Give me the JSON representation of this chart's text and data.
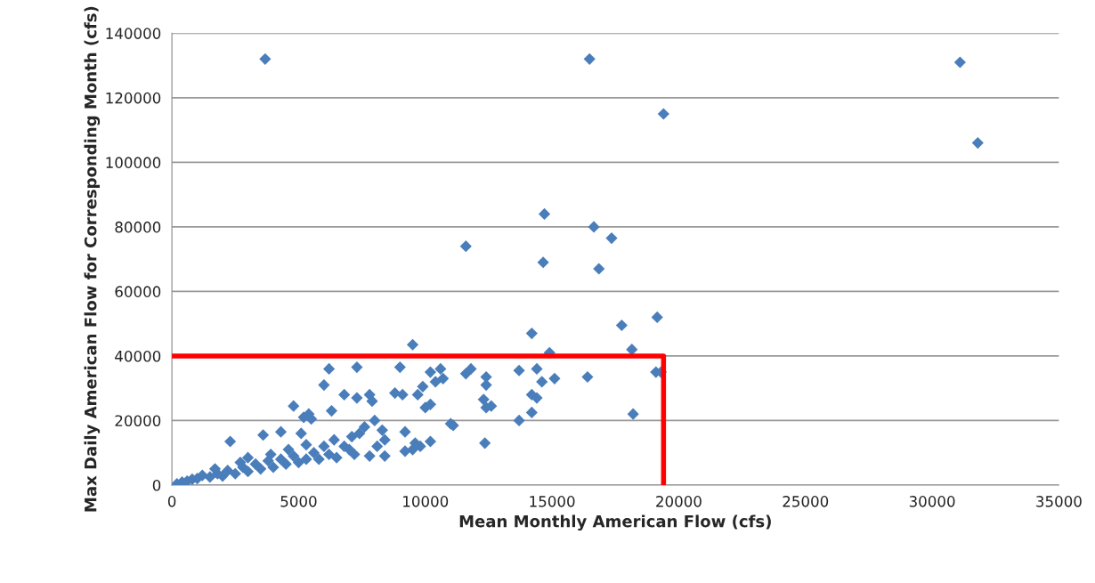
{
  "chart_data": {
    "type": "scatter",
    "xlabel": "Mean Monthly American Flow (cfs)",
    "ylabel": "Max Daily American Flow for Corresponding Month (cfs)",
    "xlim": [
      0,
      35000
    ],
    "xticks": [
      0,
      5000,
      10000,
      15000,
      20000,
      25000,
      30000,
      35000
    ],
    "ylim": [
      0,
      140000
    ],
    "yticks": [
      0,
      20000,
      40000,
      60000,
      80000,
      100000,
      120000,
      140000
    ],
    "grid": "y",
    "legend": false,
    "series": [
      {
        "marker": "diamond",
        "color": "#4a7ebb",
        "x": [
          3680,
          16480,
          19400,
          31100,
          31800,
          14700,
          16650,
          17350,
          11600,
          14650,
          16850,
          17750,
          19150,
          14200,
          18150,
          9500,
          14900,
          19100,
          19300,
          18200,
          16400,
          15100,
          14600,
          13700,
          14400,
          14200,
          14400,
          14200,
          13700,
          12350,
          12400,
          12400,
          12300,
          12600,
          12400,
          11600,
          11800,
          10600,
          10400,
          10700,
          10200,
          10000,
          10200,
          9900,
          11000,
          11100,
          10200,
          9000,
          9100,
          8800,
          9700,
          9200,
          9200,
          9800,
          9500,
          9600,
          7300,
          6200,
          6000,
          7800,
          7900,
          7300,
          6800,
          6300,
          5200,
          5400,
          4800,
          5500,
          5100,
          4300,
          3600,
          2300,
          7600,
          7400,
          7100,
          8000,
          8300,
          8400,
          8100,
          8400,
          7800,
          6800,
          6400,
          6000,
          200,
          400,
          600,
          800,
          1000,
          1200,
          1500,
          1800,
          2000,
          2200,
          2500,
          2800,
          3000,
          3300,
          3500,
          3800,
          4000,
          4300,
          4500,
          4800,
          5000,
          5300,
          5600,
          5800,
          6200,
          6500,
          7000,
          7200,
          2700,
          3900,
          4600,
          5300,
          1700,
          3000
        ],
        "values": [
          132000,
          132000,
          115000,
          131000,
          106000,
          84000,
          80000,
          76500,
          74000,
          69000,
          67000,
          49500,
          52000,
          47000,
          42000,
          43500,
          41000,
          35000,
          35000,
          22000,
          33500,
          33000,
          32000,
          35500,
          36000,
          28000,
          27000,
          22500,
          20000,
          13000,
          31000,
          33500,
          26500,
          24500,
          24000,
          34500,
          36000,
          36000,
          32000,
          33000,
          35000,
          24000,
          25000,
          30500,
          19000,
          18500,
          13500,
          36500,
          28000,
          28500,
          28000,
          16500,
          10500,
          12000,
          11000,
          13000,
          36500,
          36000,
          31000,
          28000,
          26000,
          27000,
          28000,
          23000,
          21000,
          22000,
          24500,
          20500,
          16000,
          16500,
          15500,
          13500,
          18000,
          16000,
          15000,
          20000,
          17000,
          14000,
          12000,
          9000,
          9000,
          12000,
          14000,
          12000,
          400,
          900,
          1200,
          1800,
          2000,
          3000,
          2500,
          3500,
          2800,
          4500,
          3500,
          5500,
          4200,
          6500,
          5000,
          7500,
          5500,
          8000,
          6500,
          9000,
          7000,
          8000,
          10000,
          8000,
          9500,
          8500,
          11000,
          9500,
          7000,
          9500,
          11000,
          12500,
          5000,
          8500
        ]
      },
      {
        "type": "line",
        "marker": "none",
        "color": "#ff0000",
        "x": [
          0,
          19400,
          19400
        ],
        "values": [
          40000,
          40000,
          0
        ]
      }
    ]
  }
}
